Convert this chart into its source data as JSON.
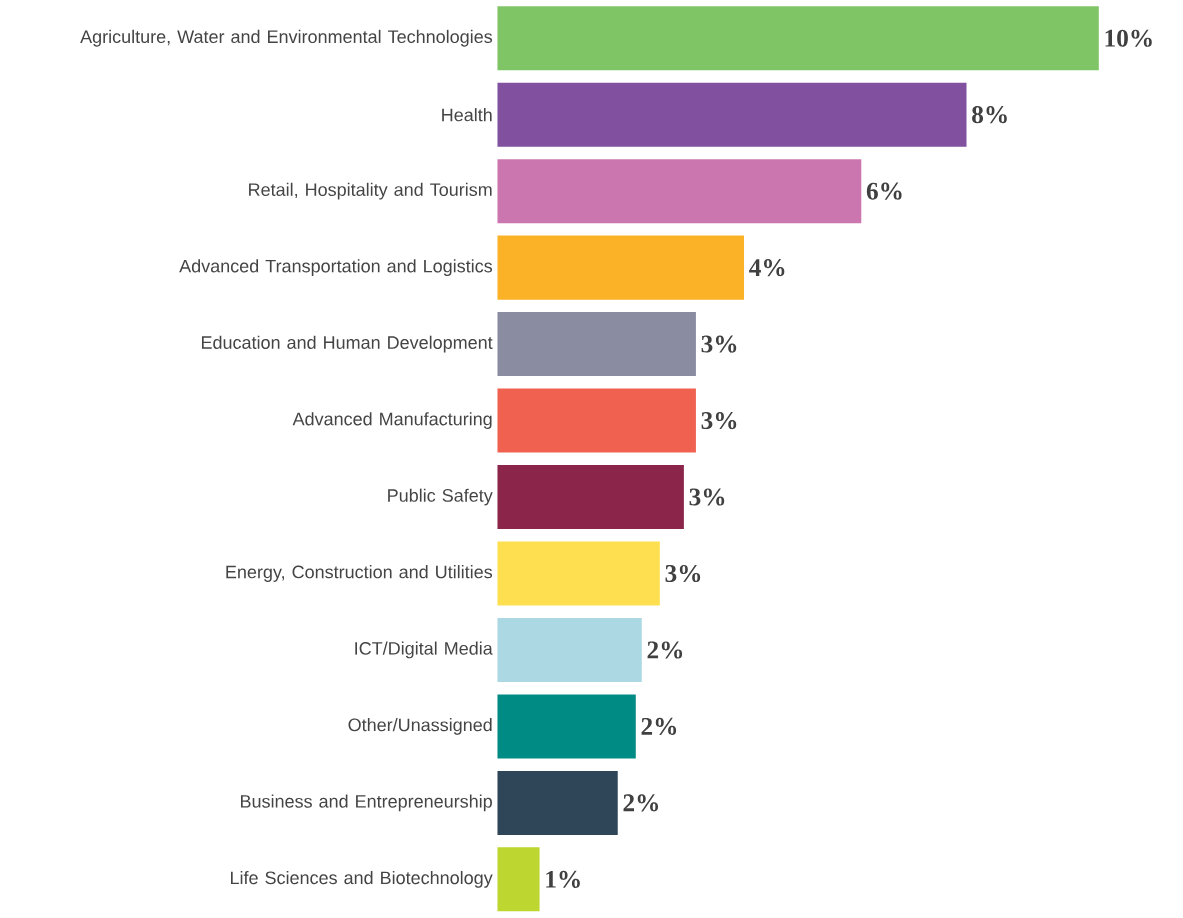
{
  "chart_data": {
    "type": "bar",
    "orientation": "horizontal",
    "categories": [
      "Agriculture, Water and Environmental Technologies",
      "Health",
      "Retail, Hospitality and Tourism",
      "Advanced Transportation and Logistics",
      "Education and Human Development",
      "Advanced Manufacturing",
      "Public Safety",
      "Energy, Construction and Utilities",
      "ICT/Digital Media",
      "Other/Unassigned",
      "Business and Entrepreneurship",
      "Life Sciences and Biotechnology"
    ],
    "values": [
      10,
      7.8,
      6.05,
      4.1,
      3.3,
      3.3,
      3.1,
      2.7,
      2.4,
      2.3,
      2.0,
      0.7
    ],
    "colors": [
      "#80c565",
      "#81519f",
      "#cb76ae",
      "#fbb226",
      "#8a8ca2",
      "#f0624f",
      "#8b2549",
      "#fddf50",
      "#acd8e3",
      "#008b84",
      "#2e4657",
      "#bed630"
    ],
    "value_labels": [
      "10%",
      "8%",
      "6%",
      "4%",
      "3%",
      "3%",
      "3%",
      "3%",
      "2%",
      "2%",
      "2%",
      "1%"
    ]
  }
}
